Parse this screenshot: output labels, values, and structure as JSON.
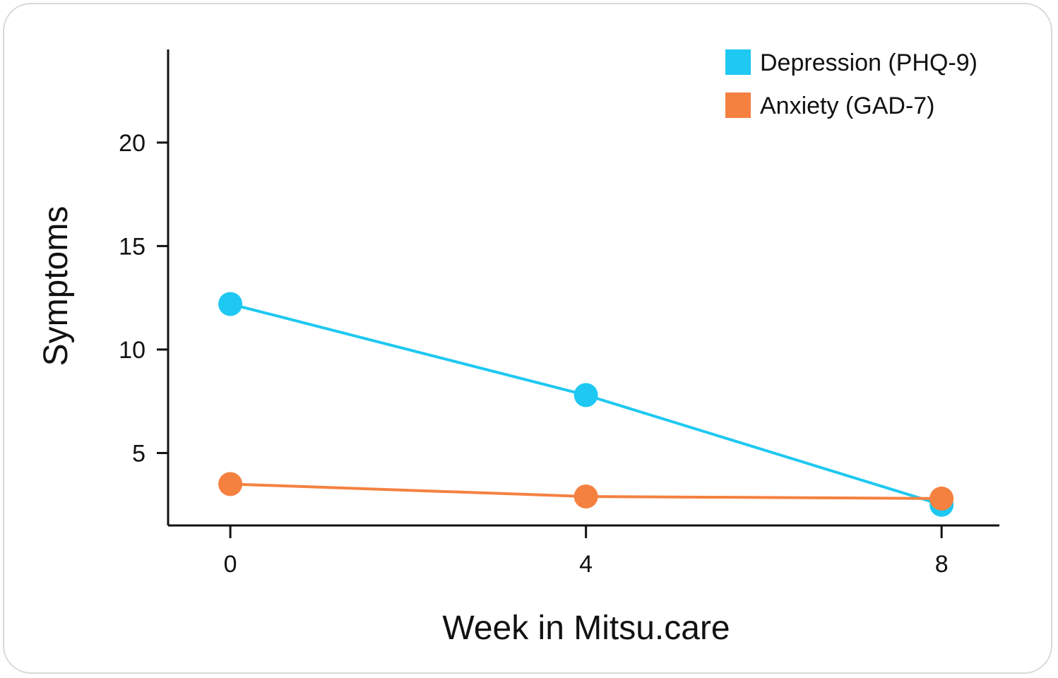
{
  "chart_data": {
    "type": "line",
    "title": "",
    "xlabel": "Week in Mitsu.care",
    "ylabel": "Symptoms",
    "x": [
      0,
      4,
      8
    ],
    "x_ticks": [
      "0",
      "4",
      "8"
    ],
    "y_ticks": [
      5,
      10,
      15,
      20
    ],
    "xlim": [
      -0.7,
      8.65
    ],
    "ylim": [
      1.5,
      24.5
    ],
    "grid": false,
    "legend_position": "top-right",
    "series": [
      {
        "name": "Depression (PHQ-9)",
        "color": "#1ec8f2",
        "values": [
          12.2,
          7.8,
          2.5
        ]
      },
      {
        "name": "Anxiety (GAD-7)",
        "color": "#f58140",
        "values": [
          3.5,
          2.9,
          2.8
        ]
      }
    ]
  }
}
